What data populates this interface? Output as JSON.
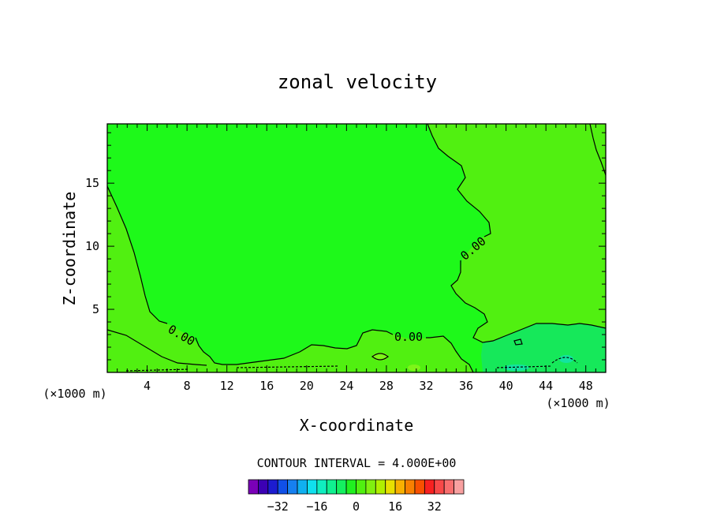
{
  "chart_data": {
    "type": "contour",
    "title": "zonal velocity",
    "xlabel": "X-coordinate",
    "ylabel": "Z-coordinate",
    "x_unit_left": "(×1000 m)",
    "x_unit_right": "(×1000 m)",
    "xlim": [
      0,
      50
    ],
    "ylim": [
      0,
      19.7
    ],
    "xticks": [
      4,
      8,
      12,
      16,
      20,
      24,
      28,
      32,
      36,
      40,
      44,
      48
    ],
    "yticks": [
      5,
      10,
      15
    ],
    "contour_interval_text": "CONTOUR INTERVAL =  4.000E+00",
    "contour_labels": [
      "0.00",
      "0.00",
      "0.00"
    ],
    "colorbar": {
      "levels_count": 22,
      "colors": [
        "#7a00b8",
        "#3c00b4",
        "#1c1cd0",
        "#1050e8",
        "#1680f0",
        "#10b0f0",
        "#10e0ee",
        "#10eec0",
        "#10f090",
        "#14f060",
        "#20f020",
        "#50f010",
        "#80f010",
        "#b0f000",
        "#e8e000",
        "#f8b000",
        "#f88000",
        "#f85000",
        "#f82020",
        "#f84848",
        "#f86e6e",
        "#f8a0a0"
      ],
      "tick_labels": [
        "−32",
        "−16",
        "0",
        "16",
        "32"
      ],
      "tick_values": [
        -32,
        -16,
        0,
        16,
        32
      ]
    },
    "fill_colors": {
      "main": "#1ef91a",
      "positive_light": "#51f011",
      "positive_strong": "#7ef519",
      "negative_light": "#16e85a",
      "negative_strong": "#13e4a0"
    },
    "grid": false,
    "legend": "bottom-center"
  }
}
